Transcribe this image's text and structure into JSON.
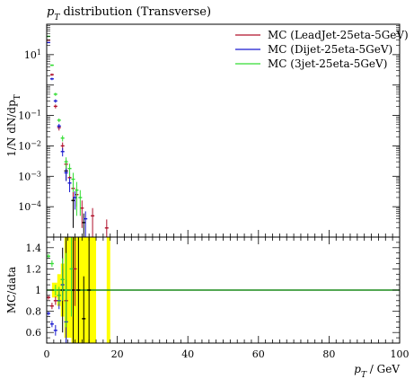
{
  "chart_data": {
    "type": "scatter",
    "title": "pT distribution (Transverse)",
    "title_parts": {
      "p": "p",
      "sub": "T",
      "rest": " distribution (Transverse)"
    },
    "ylabel": "1/N dN/dpT",
    "ylabel_parts": {
      "main": "1/N dN/dp",
      "sub": "T"
    },
    "xlabel": "pT / GeV",
    "xlabel_parts": {
      "p": "p",
      "sub": "T",
      "rest": " / GeV"
    },
    "ratio_ylabel": "MC/data",
    "xlim": [
      0,
      100
    ],
    "ylim": [
      1e-05,
      100
    ],
    "yscale": "log",
    "ratio_ylim": [
      0.5,
      1.5
    ],
    "x_ticks": [
      "0",
      "20",
      "40",
      "60",
      "80",
      "100"
    ],
    "y_ticks": [
      "10^-4",
      "10^-3",
      "10^-2",
      "10^-1",
      "1",
      "10^1"
    ],
    "ratio_ticks": [
      "0.6",
      "0.8",
      "1",
      "1.2",
      "1.4"
    ],
    "legend_position": "top-right",
    "legend": [
      {
        "label": "MC (LeadJet-25eta-5GeV)",
        "color": "#b0102a"
      },
      {
        "label": "MC (Dijet-25eta-5GeV)",
        "color": "#1a1ad0"
      },
      {
        "label": "MC (3jet-25eta-5GeV)",
        "color": "#33dd33"
      }
    ],
    "series": [
      {
        "name": "MC (LeadJet-25eta-5GeV)",
        "color": "#b0102a",
        "points": [
          {
            "x": 0.5,
            "y": 30,
            "err": 1
          },
          {
            "x": 1.5,
            "y": 2.2,
            "err": 0.2
          },
          {
            "x": 2.5,
            "y": 0.2,
            "err": 0.03
          },
          {
            "x": 3.5,
            "y": 0.04,
            "err": 0.008
          },
          {
            "x": 4.5,
            "y": 0.01,
            "err": 0.003
          },
          {
            "x": 5.5,
            "y": 0.0025,
            "err": 0.001
          },
          {
            "x": 6.5,
            "y": 0.0009,
            "err": 0.0004
          },
          {
            "x": 7.5,
            "y": 0.0004,
            "err": 0.0002
          },
          {
            "x": 8.5,
            "y": 0.00025,
            "err": 0.00015
          },
          {
            "x": 10,
            "y": 9e-05,
            "err": 7e-05
          },
          {
            "x": 13,
            "y": 5e-05,
            "err": 4e-05
          },
          {
            "x": 17,
            "y": 2e-05,
            "err": 1.8e-05
          }
        ],
        "ratio": [
          {
            "x": 0.5,
            "y": 0.93,
            "err": 0.02
          },
          {
            "x": 1.5,
            "y": 0.85,
            "err": 0.03
          },
          {
            "x": 2.5,
            "y": 0.9,
            "err": 0.04
          },
          {
            "x": 3.5,
            "y": 0.95,
            "err": 0.06
          },
          {
            "x": 4.5,
            "y": 1.1,
            "err": 0.15
          },
          {
            "x": 5.5,
            "y": 0.9,
            "err": 0.2
          },
          {
            "x": 8,
            "y": 1.2,
            "err": 0.35
          }
        ]
      },
      {
        "name": "MC (Dijet-25eta-5GeV)",
        "color": "#1a1ad0",
        "points": [
          {
            "x": 0.5,
            "y": 25,
            "err": 1
          },
          {
            "x": 1.5,
            "y": 1.6,
            "err": 0.15
          },
          {
            "x": 2.5,
            "y": 0.3,
            "err": 0.04
          },
          {
            "x": 3.5,
            "y": 0.045,
            "err": 0.008
          },
          {
            "x": 4.5,
            "y": 0.0065,
            "err": 0.002
          },
          {
            "x": 5.5,
            "y": 0.0013,
            "err": 0.0006
          },
          {
            "x": 6.5,
            "y": 0.0006,
            "err": 0.0003
          },
          {
            "x": 8,
            "y": 0.0002,
            "err": 0.00012
          },
          {
            "x": 11,
            "y": 4e-05,
            "err": 3e-05
          }
        ],
        "ratio": [
          {
            "x": 0.5,
            "y": 0.78,
            "err": 0.02
          },
          {
            "x": 1.5,
            "y": 0.68,
            "err": 0.03
          },
          {
            "x": 2.5,
            "y": 0.62,
            "err": 0.05
          },
          {
            "x": 3.5,
            "y": 0.9,
            "err": 0.08
          },
          {
            "x": 4.5,
            "y": 1.05,
            "err": 0.15
          },
          {
            "x": 5.5,
            "y": 0.7,
            "err": 0.3
          }
        ]
      },
      {
        "name": "MC (3jet-25eta-5GeV)",
        "color": "#33dd33",
        "points": [
          {
            "x": 0.5,
            "y": 40,
            "err": 2
          },
          {
            "x": 1.5,
            "y": 4.5,
            "err": 0.3
          },
          {
            "x": 2.5,
            "y": 0.5,
            "err": 0.06
          },
          {
            "x": 3.5,
            "y": 0.07,
            "err": 0.01
          },
          {
            "x": 4.5,
            "y": 0.018,
            "err": 0.004
          },
          {
            "x": 5.5,
            "y": 0.003,
            "err": 0.0012
          },
          {
            "x": 6.5,
            "y": 0.0018,
            "err": 0.0008
          },
          {
            "x": 7.5,
            "y": 0.0008,
            "err": 0.0005
          },
          {
            "x": 8.5,
            "y": 0.00035,
            "err": 0.0003
          },
          {
            "x": 9.5,
            "y": 0.0002,
            "err": 0.00015
          }
        ],
        "ratio": [
          {
            "x": 0.5,
            "y": 1.32,
            "err": 0.02
          },
          {
            "x": 1.5,
            "y": 1.25,
            "err": 0.03
          },
          {
            "x": 2.5,
            "y": 1.0,
            "err": 0.05
          },
          {
            "x": 3.5,
            "y": 0.95,
            "err": 0.08
          },
          {
            "x": 4.5,
            "y": 1.1,
            "err": 0.2
          },
          {
            "x": 5.5,
            "y": 1.0,
            "err": 0.35
          },
          {
            "x": 7,
            "y": 1.2,
            "err": 0.45
          }
        ]
      }
    ],
    "data_reference": {
      "color": "#000000",
      "points": [
        {
          "x": 5.5,
          "y": 0.0015,
          "err": 0.0008
        },
        {
          "x": 7.5,
          "y": 0.00016,
          "err": 0.00014
        },
        {
          "x": 10.5,
          "y": 3e-05,
          "err": 3e-05
        }
      ],
      "ratio_points": [
        {
          "x": 4.5,
          "y": 1.0,
          "err": 0.4
        },
        {
          "x": 5.5,
          "y": 1.0,
          "err": 0.5
        },
        {
          "x": 7.5,
          "y": 1.0,
          "err": 0.5
        },
        {
          "x": 9,
          "y": 1.0,
          "err": 0.5
        },
        {
          "x": 10.5,
          "y": 0.73,
          "err": 0.4
        },
        {
          "x": 12,
          "y": 1.0,
          "err": 0.5
        }
      ]
    },
    "uncertainty_bands": [
      {
        "x0": 1.5,
        "x1": 3,
        "lo": 0.93,
        "hi": 1.07
      },
      {
        "x0": 3,
        "x1": 4,
        "lo": 0.85,
        "hi": 1.15
      },
      {
        "x0": 4,
        "x1": 5,
        "lo": 0.75,
        "hi": 1.25
      },
      {
        "x0": 5,
        "x1": 7,
        "lo": 0.55,
        "hi": 1.5
      },
      {
        "x0": 7,
        "x1": 8.5,
        "lo": 0.5,
        "hi": 1.5
      },
      {
        "x0": 8.5,
        "x1": 14,
        "lo": 0.5,
        "hi": 1.5
      },
      {
        "x0": 17,
        "x1": 18,
        "lo": 0.5,
        "hi": 1.5
      }
    ],
    "reference_line_value": 1.0
  }
}
